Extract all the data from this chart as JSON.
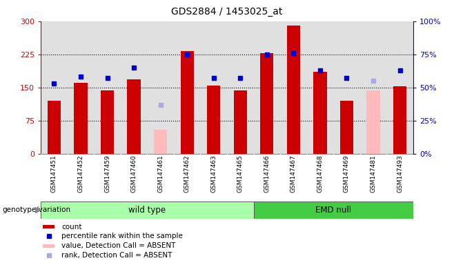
{
  "title": "GDS2884 / 1453025_at",
  "samples": [
    "GSM147451",
    "GSM147452",
    "GSM147459",
    "GSM147460",
    "GSM147461",
    "GSM147462",
    "GSM147463",
    "GSM147465",
    "GSM147466",
    "GSM147467",
    "GSM147468",
    "GSM147469",
    "GSM147481",
    "GSM147493"
  ],
  "counts": [
    120,
    160,
    143,
    168,
    null,
    232,
    155,
    143,
    228,
    290,
    185,
    120,
    null,
    152
  ],
  "absent_counts": [
    null,
    null,
    null,
    null,
    55,
    null,
    null,
    null,
    null,
    null,
    null,
    null,
    143,
    null
  ],
  "percentile_ranks": [
    53,
    58,
    57,
    65,
    null,
    75,
    57,
    57,
    75,
    76,
    63,
    57,
    null,
    63
  ],
  "absent_ranks": [
    null,
    null,
    null,
    null,
    37,
    null,
    null,
    null,
    null,
    null,
    null,
    null,
    55,
    null
  ],
  "wt_indices": [
    0,
    1,
    2,
    3,
    4,
    5,
    6,
    7
  ],
  "emd_indices": [
    8,
    9,
    10,
    11,
    12,
    13
  ],
  "left_ylim": [
    0,
    300
  ],
  "right_ylim": [
    0,
    100
  ],
  "left_yticks": [
    0,
    75,
    150,
    225,
    300
  ],
  "right_yticks": [
    0,
    25,
    50,
    75,
    100
  ],
  "hlines": [
    75,
    150,
    225
  ],
  "bar_color": "#cc0000",
  "absent_bar_color": "#ffbbbb",
  "dot_color": "#0000cc",
  "absent_dot_color": "#aaaadd",
  "wt_color": "#aaffaa",
  "emd_color": "#44cc44",
  "plot_bg": "#e0e0e0",
  "xtick_bg": "#cccccc",
  "bar_width": 0.5,
  "figsize": [
    6.58,
    3.84
  ],
  "dpi": 100,
  "legend": [
    {
      "label": "count",
      "color": "#cc0000",
      "type": "bar"
    },
    {
      "label": "percentile rank within the sample",
      "color": "#0000cc",
      "type": "dot"
    },
    {
      "label": "value, Detection Call = ABSENT",
      "color": "#ffbbbb",
      "type": "bar"
    },
    {
      "label": "rank, Detection Call = ABSENT",
      "color": "#aaaadd",
      "type": "dot"
    }
  ]
}
